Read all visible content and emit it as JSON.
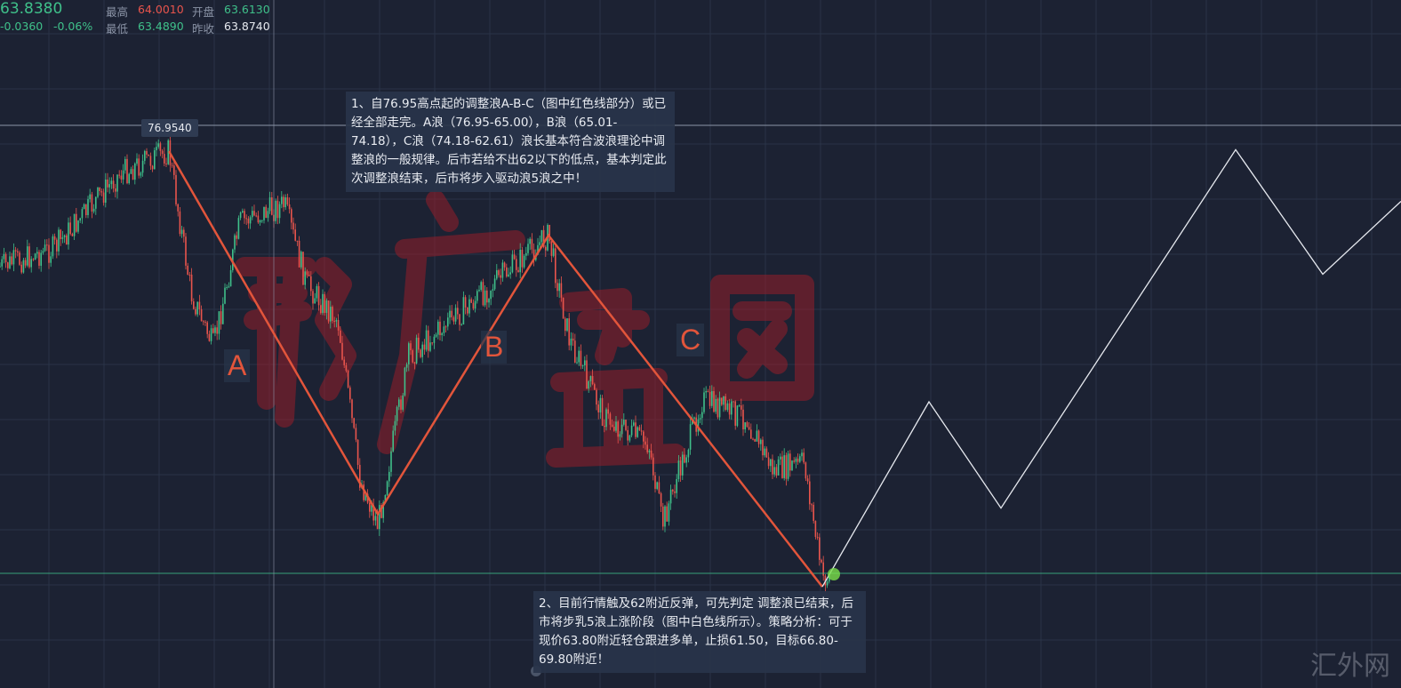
{
  "quote": {
    "last": "63.8380",
    "change": "-0.0360",
    "change_pct": "-0.06%",
    "high_label": "最高",
    "high": "64.0010",
    "open_label": "开盘",
    "open": "63.6130",
    "low_label": "最低",
    "low": "63.4890",
    "prev_close_label": "昨收",
    "prev_close": "63.8740"
  },
  "annotations": {
    "peak_tag": "76.9540",
    "note1": "1、自76.95高点起的调整浪A-B-C（图中红色线部分）或已经全部走完。A浪（76.95-65.00），B浪（65.01-74.18），C浪（74.18-62.61）浪长基本符合波浪理论中调整浪的一般规律。后市若给不出62以下的低点，基本判定此次调整浪结束，后市将步入驱动浪5浪之中！",
    "note2": "2、目前行情触及62附近反弹，可先判定 调整浪已结束，后市将步乳5浪上涨阶段（图中白色线所示）。策略分析：可于现价63.80附近轻仓跟进多单，止损61.50，目标66.80-69.80附近！",
    "wave_a": "A",
    "wave_b": "B",
    "wave_c": "C"
  },
  "watermark": {
    "logo": "郭广盈国",
    "site": "汇外网"
  },
  "colors": {
    "background": "#1c2233",
    "up": "#3fc08a",
    "down": "#e8544c",
    "abc_line": "#e2553b",
    "projection_line": "#e6e9ef"
  },
  "chart_data": {
    "type": "candlestick",
    "grid": true,
    "abc_wave": {
      "labels": [
        "start",
        "A",
        "B",
        "C"
      ],
      "prices": [
        76.95,
        65.0,
        74.18,
        62.61
      ]
    },
    "projection": {
      "prices": [
        62.61,
        68.7,
        65.2,
        77.0,
        72.9,
        75.3
      ]
    },
    "reference_lines": [
      76.954,
      63.838
    ]
  }
}
